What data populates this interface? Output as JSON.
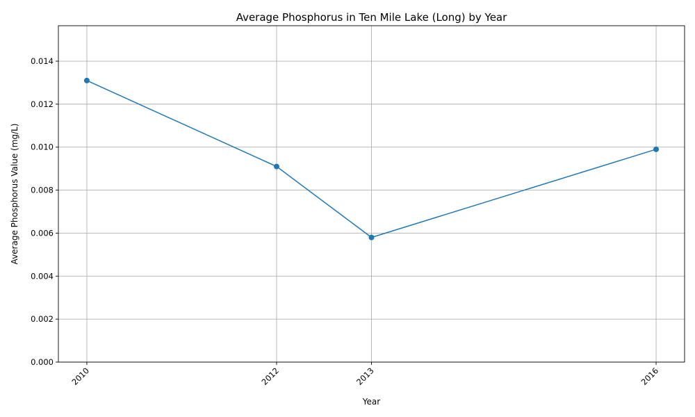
{
  "chart_data": {
    "type": "line",
    "title": "Average Phosphorus in Ten Mile Lake (Long) by Year",
    "xlabel": "Year",
    "ylabel": "Average Phosphorus Value (mg/L)",
    "x": [
      2010,
      2012,
      2013,
      2016
    ],
    "x_tick_labels": [
      "2010",
      "2012",
      "2013",
      "2016"
    ],
    "xlim": [
      2009.7,
      2016.3
    ],
    "series": [
      {
        "values": [
          0.0131,
          0.0091,
          0.0058,
          0.0099
        ],
        "color": "#1f77b4",
        "marker": "circle"
      }
    ],
    "y_ticks": [
      0.0,
      0.002,
      0.004,
      0.006,
      0.008,
      0.01,
      0.012,
      0.014
    ],
    "y_tick_labels": [
      "0.000",
      "0.002",
      "0.004",
      "0.006",
      "0.008",
      "0.010",
      "0.012",
      "0.014"
    ],
    "ylim": [
      0,
      0.01565
    ],
    "grid": true,
    "legend": "none"
  }
}
